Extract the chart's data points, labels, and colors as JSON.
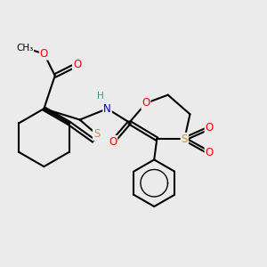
{
  "bg_color": "#ebebeb",
  "atom_colors": {
    "S": "#c8a000",
    "O": "#ff0000",
    "N": "#0000cc",
    "H": "#4a9090",
    "C": "#000000"
  },
  "bond_color": "#000000",
  "figsize": [
    3.0,
    3.0
  ],
  "dpi": 100
}
